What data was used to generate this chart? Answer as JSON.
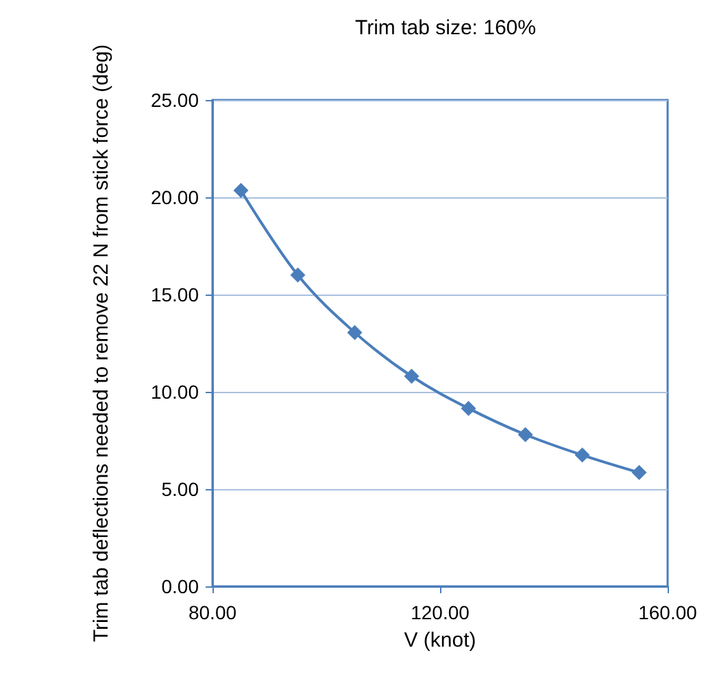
{
  "chart_data": {
    "type": "line",
    "title": "Trim tab size: 160%",
    "xlabel": "V (knot)",
    "ylabel": "Trim tab deflections needed to remove 22 N from stick force (deg)",
    "x": [
      85,
      95,
      105,
      115,
      125,
      135,
      145,
      155
    ],
    "series": [
      {
        "color": "#4a7ebb",
        "values": [
          20.35,
          16.0,
          13.05,
          10.8,
          9.15,
          7.8,
          6.75,
          5.85
        ]
      }
    ],
    "xlim": [
      80,
      160
    ],
    "xticks": [
      {
        "value": 80,
        "label": "80.00"
      },
      {
        "value": 120,
        "label": "120.00"
      },
      {
        "value": 160,
        "label": "160.00"
      }
    ],
    "ylim": [
      0,
      25
    ],
    "yticks": [
      {
        "value": 0,
        "label": "0.00"
      },
      {
        "value": 5,
        "label": "5.00"
      },
      {
        "value": 10,
        "label": "10.00"
      },
      {
        "value": 15,
        "label": "15.00"
      },
      {
        "value": 20,
        "label": "20.00"
      },
      {
        "value": 25,
        "label": "25.00"
      }
    ],
    "grid": "y",
    "marker": "diamond",
    "line_style": "solid"
  }
}
